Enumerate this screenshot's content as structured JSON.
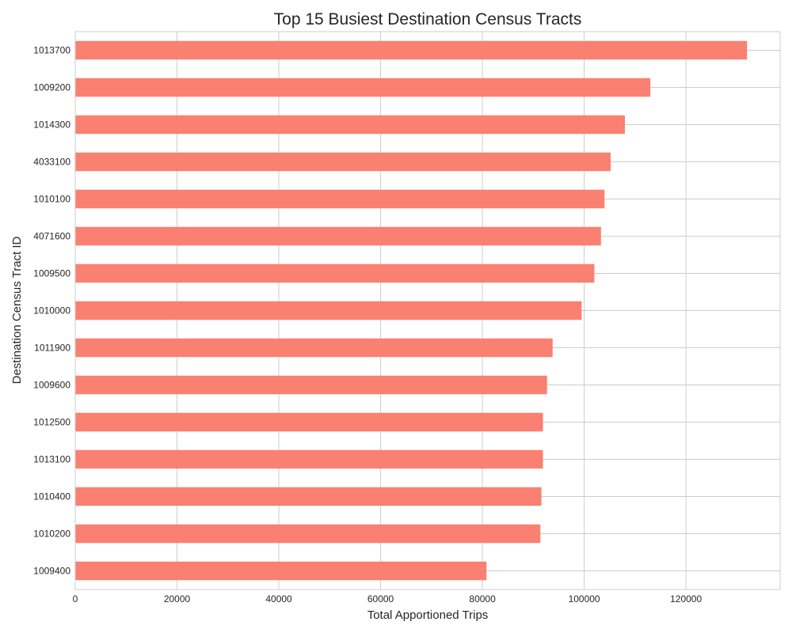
{
  "chart_data": {
    "type": "bar",
    "orientation": "horizontal",
    "title": "Top 15 Busiest Destination Census Tracts",
    "xlabel": "Total Apportioned Trips",
    "ylabel": "Destination Census Tract ID",
    "categories": [
      "1013700",
      "1009200",
      "1014300",
      "4033100",
      "1010100",
      "4071600",
      "1009500",
      "1010000",
      "1011900",
      "1009600",
      "1012500",
      "1013100",
      "1010400",
      "1010200",
      "1009400"
    ],
    "values": [
      132000,
      113000,
      108000,
      105200,
      104000,
      103300,
      102000,
      99500,
      93800,
      92700,
      91900,
      91900,
      91600,
      91400,
      80800
    ],
    "xlim": [
      0,
      138500
    ],
    "xticks": [
      0,
      20000,
      40000,
      60000,
      80000,
      100000,
      120000
    ],
    "xtick_labels": [
      "0",
      "20000",
      "40000",
      "60000",
      "80000",
      "100000",
      "120000"
    ],
    "grid": true,
    "colors": {
      "bar": "#fa8072",
      "grid": "#cccccc",
      "text": "#262626"
    }
  }
}
